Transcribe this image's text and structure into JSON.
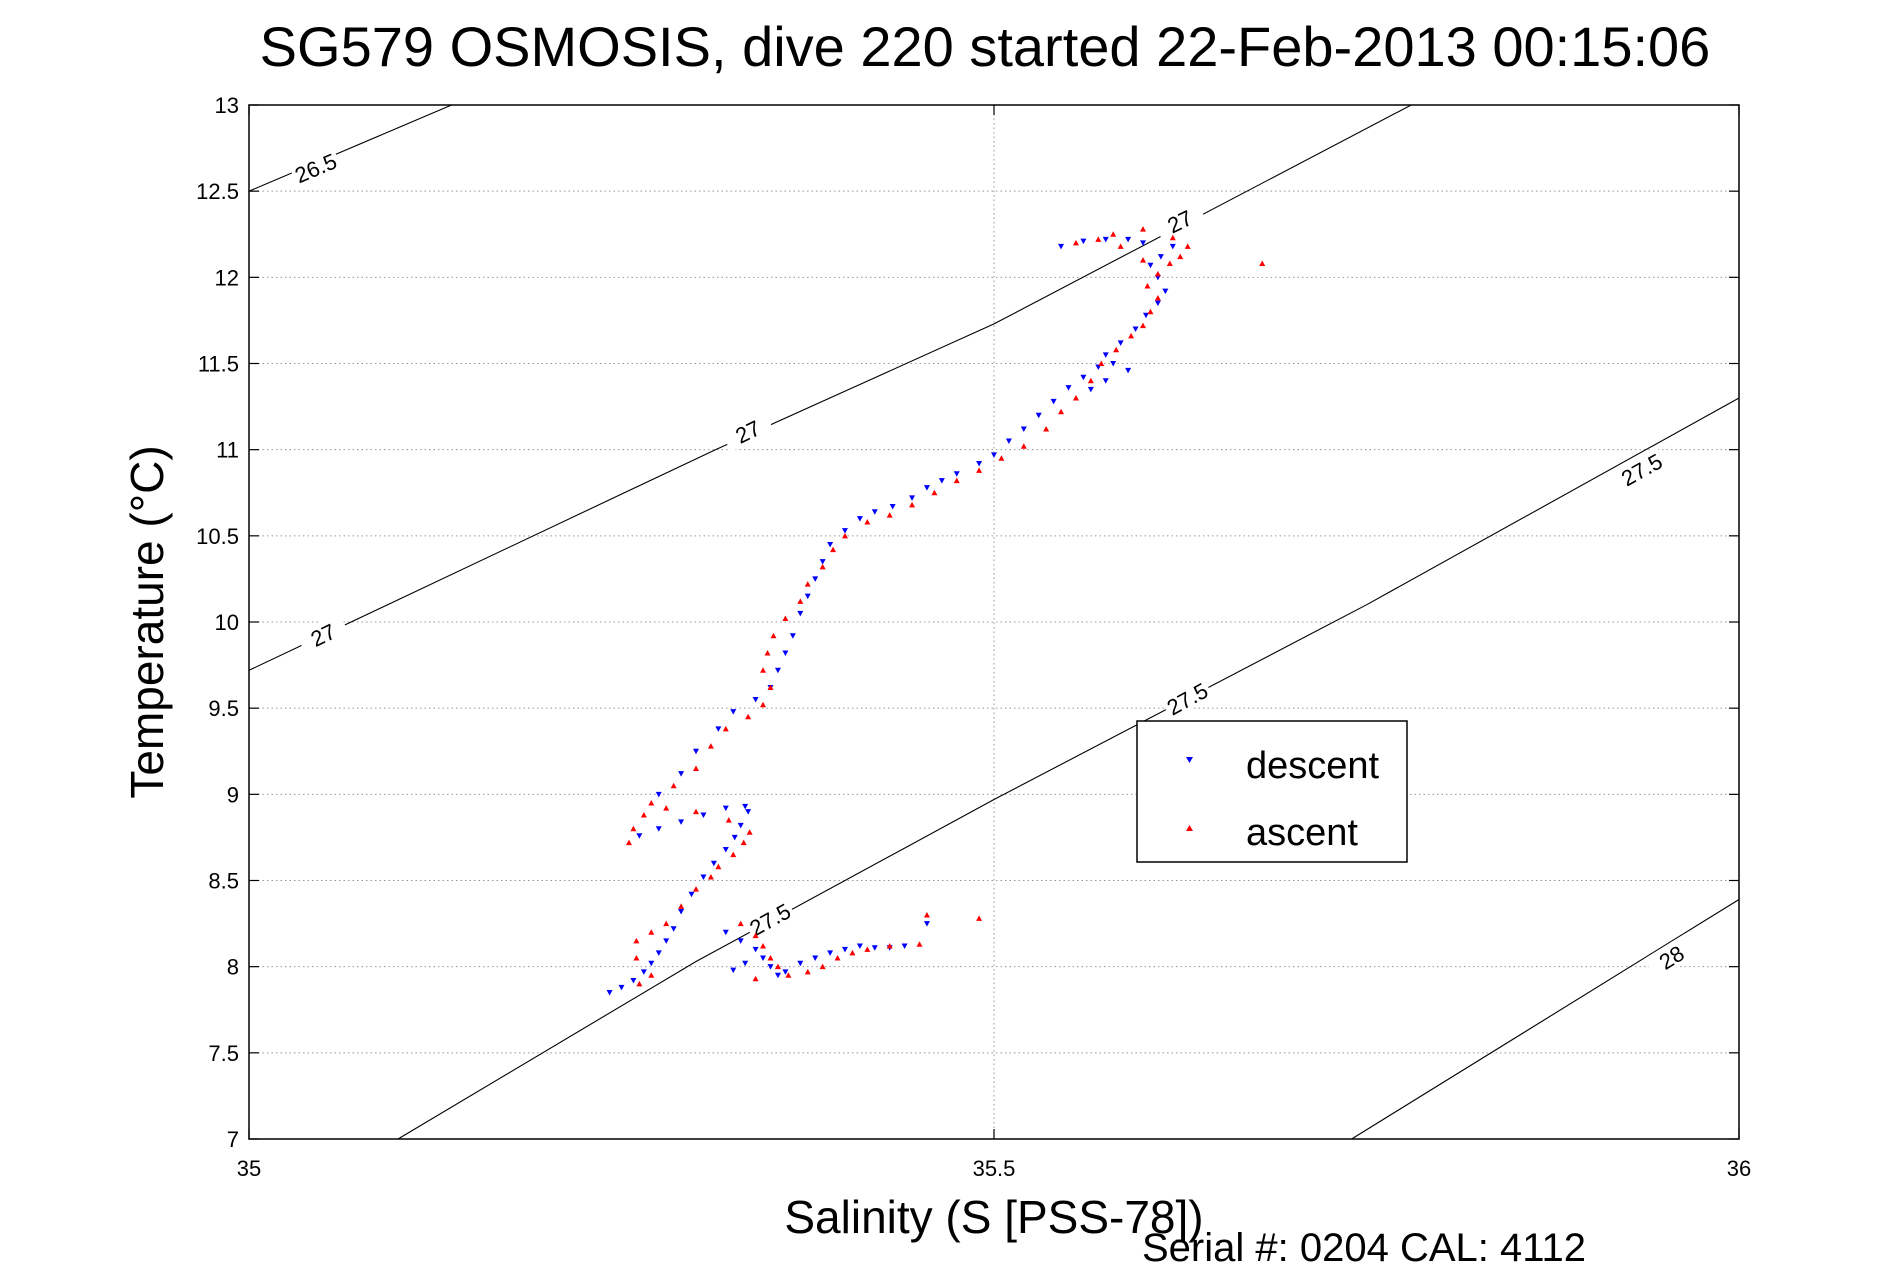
{
  "chart_data": {
    "type": "scatter",
    "title": "SG579 OSMOSIS, dive 220 started 22-Feb-2013 00:15:06",
    "xlabel": "Salinity (S [PSS-78])",
    "ylabel": "Temperature (°C)",
    "xlim": [
      35,
      36
    ],
    "ylim": [
      7,
      13
    ],
    "x_ticks": [
      35,
      35.5,
      36
    ],
    "x_tick_labels": [
      "35",
      "35.5",
      "36"
    ],
    "y_ticks": [
      7,
      7.5,
      8,
      8.5,
      9,
      9.5,
      10,
      10.5,
      11,
      11.5,
      12,
      12.5,
      13
    ],
    "y_tick_labels": [
      "7",
      "7.5",
      "8",
      "8.5",
      "9",
      "9.5",
      "10",
      "10.5",
      "11",
      "11.5",
      "12",
      "12.5",
      "13"
    ],
    "grid": true,
    "legend_position": "right-middle",
    "colors": {
      "descent": "#0000ff",
      "ascent": "#ff0000",
      "contour": "#000000",
      "grid": "#999999"
    },
    "density_contours": [
      {
        "label": "26.5",
        "points": [
          [
            35.0,
            12.5
          ],
          [
            35.136,
            13.0
          ]
        ],
        "label_positions": [
          [
            35.045,
            12.63
          ]
        ]
      },
      {
        "label": "27",
        "points": [
          [
            35.0,
            9.72
          ],
          [
            35.313,
            11.0
          ],
          [
            35.5,
            11.73
          ],
          [
            35.78,
            13.0
          ]
        ],
        "label_positions": [
          [
            35.05,
            9.92
          ],
          [
            35.335,
            11.1
          ],
          [
            35.625,
            12.32
          ]
        ]
      },
      {
        "label": "27.5",
        "points": [
          [
            35.1,
            7.0
          ],
          [
            35.3,
            8.03
          ],
          [
            35.5,
            8.97
          ],
          [
            35.75,
            10.1
          ],
          [
            36.0,
            11.3
          ]
        ],
        "label_positions": [
          [
            35.35,
            8.27
          ],
          [
            35.63,
            9.55
          ],
          [
            35.935,
            10.88
          ]
        ]
      },
      {
        "label": "28",
        "points": [
          [
            35.74,
            7.0
          ],
          [
            36.0,
            8.39
          ]
        ],
        "label_positions": [
          [
            35.955,
            8.05
          ]
        ]
      }
    ],
    "series": [
      {
        "name": "descent",
        "marker": "triangle-down",
        "points": [
          [
            35.242,
            7.85
          ],
          [
            35.25,
            7.88
          ],
          [
            35.258,
            7.92
          ],
          [
            35.265,
            7.97
          ],
          [
            35.27,
            8.02
          ],
          [
            35.275,
            8.08
          ],
          [
            35.28,
            8.15
          ],
          [
            35.285,
            8.22
          ],
          [
            35.29,
            8.32
          ],
          [
            35.297,
            8.42
          ],
          [
            35.305,
            8.52
          ],
          [
            35.312,
            8.6
          ],
          [
            35.32,
            8.68
          ],
          [
            35.326,
            8.75
          ],
          [
            35.33,
            8.82
          ],
          [
            35.335,
            8.9
          ],
          [
            35.333,
            8.93
          ],
          [
            35.32,
            8.92
          ],
          [
            35.305,
            8.88
          ],
          [
            35.29,
            8.84
          ],
          [
            35.275,
            8.8
          ],
          [
            35.262,
            8.76
          ],
          [
            35.275,
            9.0
          ],
          [
            35.29,
            9.12
          ],
          [
            35.3,
            9.25
          ],
          [
            35.315,
            9.38
          ],
          [
            35.325,
            9.48
          ],
          [
            35.34,
            9.55
          ],
          [
            35.35,
            9.62
          ],
          [
            35.355,
            9.72
          ],
          [
            35.36,
            9.82
          ],
          [
            35.365,
            9.92
          ],
          [
            35.37,
            10.05
          ],
          [
            35.375,
            10.15
          ],
          [
            35.38,
            10.25
          ],
          [
            35.385,
            10.35
          ],
          [
            35.39,
            10.45
          ],
          [
            35.4,
            10.53
          ],
          [
            35.41,
            10.6
          ],
          [
            35.42,
            10.64
          ],
          [
            35.432,
            10.67
          ],
          [
            35.445,
            10.72
          ],
          [
            35.455,
            10.78
          ],
          [
            35.465,
            10.82
          ],
          [
            35.475,
            10.86
          ],
          [
            35.49,
            10.92
          ],
          [
            35.5,
            10.97
          ],
          [
            35.51,
            11.05
          ],
          [
            35.52,
            11.12
          ],
          [
            35.53,
            11.2
          ],
          [
            35.54,
            11.28
          ],
          [
            35.55,
            11.36
          ],
          [
            35.56,
            11.42
          ],
          [
            35.57,
            11.48
          ],
          [
            35.58,
            11.5
          ],
          [
            35.59,
            11.46
          ],
          [
            35.575,
            11.4
          ],
          [
            35.565,
            11.35
          ],
          [
            35.575,
            11.55
          ],
          [
            35.585,
            11.62
          ],
          [
            35.595,
            11.7
          ],
          [
            35.602,
            11.78
          ],
          [
            35.61,
            11.85
          ],
          [
            35.615,
            11.92
          ],
          [
            35.61,
            12.0
          ],
          [
            35.605,
            12.07
          ],
          [
            35.612,
            12.12
          ],
          [
            35.62,
            12.18
          ],
          [
            35.6,
            12.2
          ],
          [
            35.59,
            12.22
          ],
          [
            35.575,
            12.22
          ],
          [
            35.56,
            12.21
          ],
          [
            35.545,
            12.18
          ],
          [
            35.32,
            8.2
          ],
          [
            35.33,
            8.15
          ],
          [
            35.34,
            8.1
          ],
          [
            35.345,
            8.05
          ],
          [
            35.35,
            8.0
          ],
          [
            35.355,
            7.95
          ],
          [
            35.36,
            7.97
          ],
          [
            35.37,
            8.02
          ],
          [
            35.38,
            8.05
          ],
          [
            35.39,
            8.08
          ],
          [
            35.4,
            8.1
          ],
          [
            35.41,
            8.12
          ],
          [
            35.42,
            8.11
          ],
          [
            35.43,
            8.11
          ],
          [
            35.44,
            8.12
          ],
          [
            35.455,
            8.25
          ],
          [
            35.333,
            8.02
          ],
          [
            35.325,
            7.98
          ]
        ]
      },
      {
        "name": "ascent",
        "marker": "triangle-up",
        "points": [
          [
            35.262,
            7.9
          ],
          [
            35.27,
            7.95
          ],
          [
            35.26,
            8.05
          ],
          [
            35.26,
            8.15
          ],
          [
            35.27,
            8.2
          ],
          [
            35.28,
            8.25
          ],
          [
            35.29,
            8.35
          ],
          [
            35.3,
            8.45
          ],
          [
            35.31,
            8.52
          ],
          [
            35.315,
            8.58
          ],
          [
            35.325,
            8.65
          ],
          [
            35.332,
            8.72
          ],
          [
            35.336,
            8.78
          ],
          [
            35.322,
            8.85
          ],
          [
            35.3,
            8.9
          ],
          [
            35.28,
            8.92
          ],
          [
            35.265,
            8.88
          ],
          [
            35.258,
            8.8
          ],
          [
            35.255,
            8.72
          ],
          [
            35.27,
            8.95
          ],
          [
            35.285,
            9.05
          ],
          [
            35.3,
            9.15
          ],
          [
            35.31,
            9.28
          ],
          [
            35.32,
            9.38
          ],
          [
            35.335,
            9.45
          ],
          [
            35.345,
            9.52
          ],
          [
            35.35,
            9.62
          ],
          [
            35.345,
            9.72
          ],
          [
            35.348,
            9.82
          ],
          [
            35.352,
            9.92
          ],
          [
            35.36,
            10.02
          ],
          [
            35.37,
            10.12
          ],
          [
            35.375,
            10.22
          ],
          [
            35.385,
            10.32
          ],
          [
            35.392,
            10.42
          ],
          [
            35.4,
            10.5
          ],
          [
            35.415,
            10.58
          ],
          [
            35.43,
            10.62
          ],
          [
            35.445,
            10.68
          ],
          [
            35.46,
            10.75
          ],
          [
            35.475,
            10.82
          ],
          [
            35.49,
            10.88
          ],
          [
            35.505,
            10.95
          ],
          [
            35.52,
            11.02
          ],
          [
            35.535,
            11.12
          ],
          [
            35.545,
            11.22
          ],
          [
            35.555,
            11.3
          ],
          [
            35.565,
            11.4
          ],
          [
            35.572,
            11.5
          ],
          [
            35.582,
            11.58
          ],
          [
            35.592,
            11.66
          ],
          [
            35.6,
            11.72
          ],
          [
            35.605,
            11.8
          ],
          [
            35.61,
            11.88
          ],
          [
            35.603,
            11.95
          ],
          [
            35.61,
            12.02
          ],
          [
            35.618,
            12.08
          ],
          [
            35.6,
            12.1
          ],
          [
            35.585,
            12.18
          ],
          [
            35.57,
            12.22
          ],
          [
            35.555,
            12.2
          ],
          [
            35.58,
            12.25
          ],
          [
            35.6,
            12.28
          ],
          [
            35.62,
            12.23
          ],
          [
            35.63,
            12.18
          ],
          [
            35.625,
            12.12
          ],
          [
            35.68,
            12.08
          ],
          [
            35.33,
            8.25
          ],
          [
            35.34,
            8.18
          ],
          [
            35.345,
            8.12
          ],
          [
            35.35,
            8.05
          ],
          [
            35.355,
            8.0
          ],
          [
            35.362,
            7.95
          ],
          [
            35.375,
            7.97
          ],
          [
            35.385,
            8.0
          ],
          [
            35.395,
            8.05
          ],
          [
            35.405,
            8.08
          ],
          [
            35.415,
            8.1
          ],
          [
            35.43,
            8.12
          ],
          [
            35.45,
            8.13
          ],
          [
            35.455,
            8.3
          ],
          [
            35.49,
            8.28
          ],
          [
            35.34,
            7.93
          ]
        ]
      }
    ],
    "legend": [
      {
        "label": "descent",
        "color": "#0000ff",
        "marker": "triangle-down"
      },
      {
        "label": "ascent",
        "color": "#ff0000",
        "marker": "triangle-up"
      }
    ],
    "footer": "Serial #: 0204  CAL: 4112"
  }
}
